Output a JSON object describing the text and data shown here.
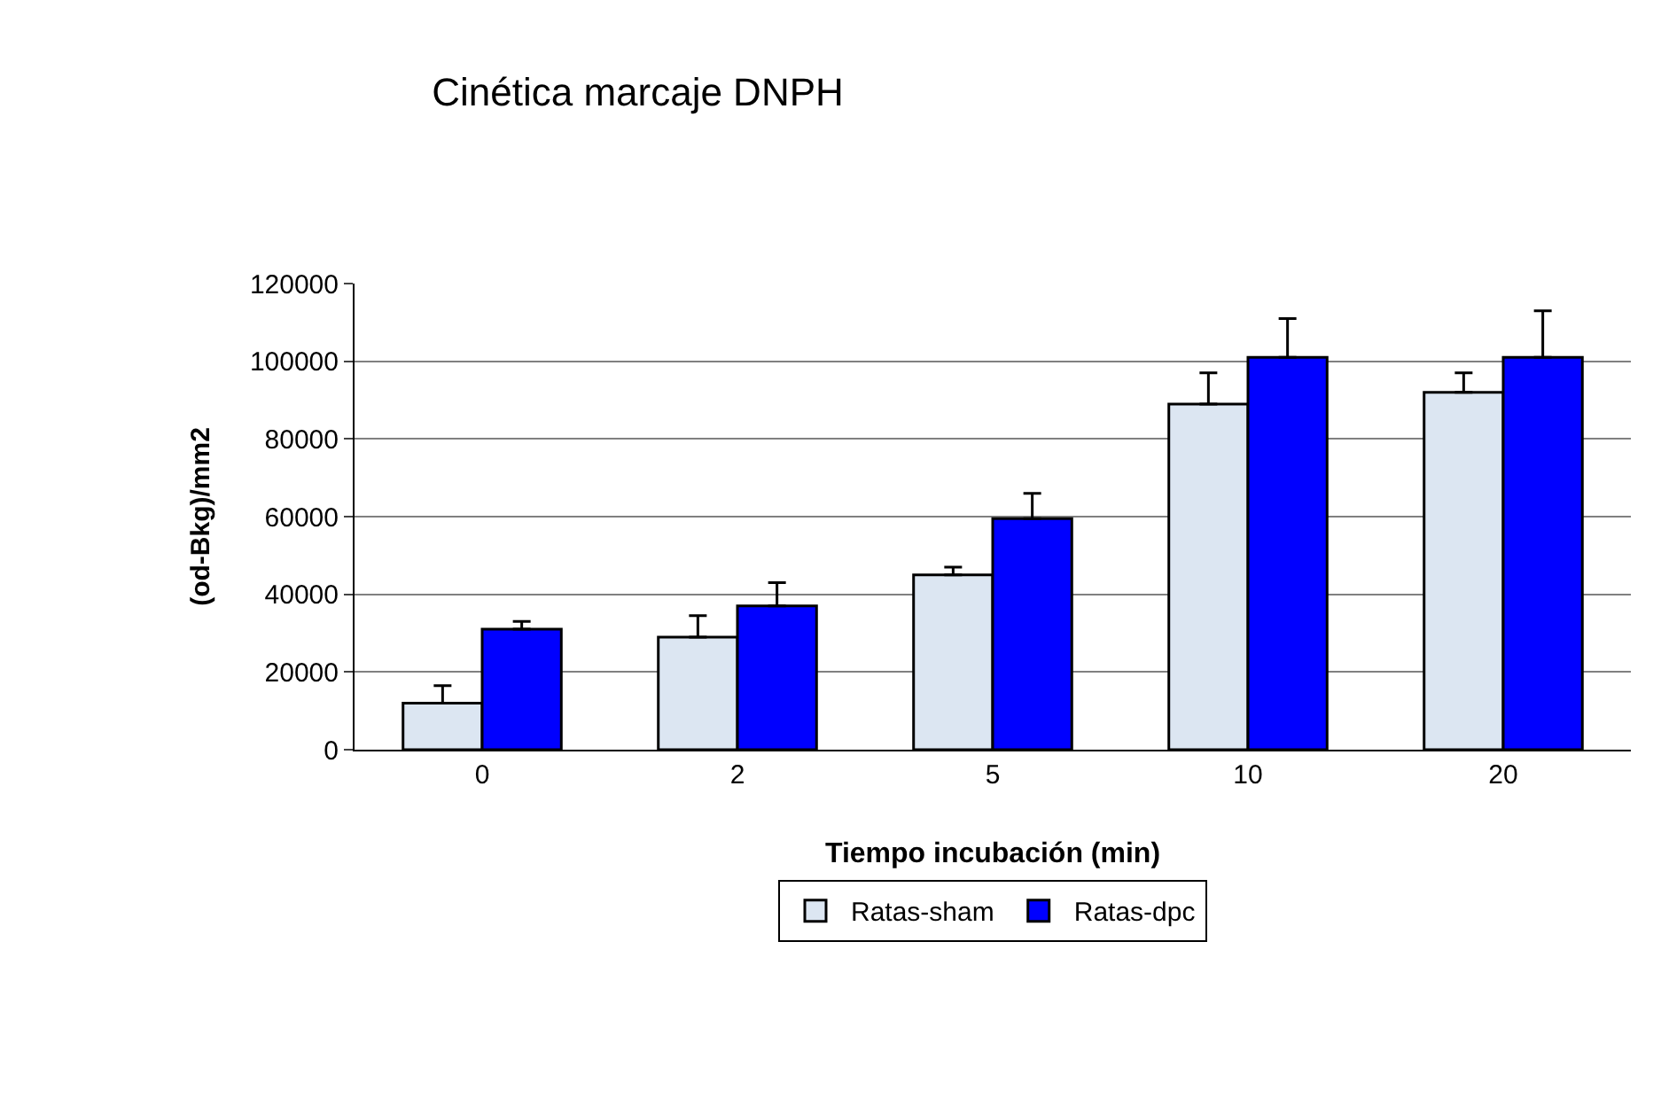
{
  "chart_data": {
    "type": "bar",
    "title": "Cinética marcaje DNPH",
    "xlabel": "Tiempo incubación (min)",
    "ylabel": "(od-Bkg)/mm2",
    "categories": [
      "0",
      "2",
      "5",
      "10",
      "20"
    ],
    "series": [
      {
        "name": "Ratas-sham",
        "color": "#dce6f2",
        "values": [
          12000,
          29000,
          45000,
          89000,
          92000
        ],
        "errors": [
          [
            12000,
            16500
          ],
          [
            29000,
            34500
          ],
          [
            45000,
            47000
          ],
          [
            89000,
            97000
          ],
          [
            92000,
            97000
          ]
        ]
      },
      {
        "name": "Ratas-dpc",
        "color": "#0000ff",
        "values": [
          31000,
          37000,
          59500,
          101000,
          101000
        ],
        "errors": [
          [
            31000,
            33000
          ],
          [
            37000,
            43000
          ],
          [
            59500,
            66000
          ],
          [
            101000,
            111000
          ],
          [
            101000,
            113000
          ]
        ]
      }
    ],
    "ylim": [
      0,
      120000
    ],
    "yticks": [
      0,
      20000,
      40000,
      60000,
      80000,
      100000,
      120000
    ],
    "grid": "y",
    "legend": "bottom"
  }
}
